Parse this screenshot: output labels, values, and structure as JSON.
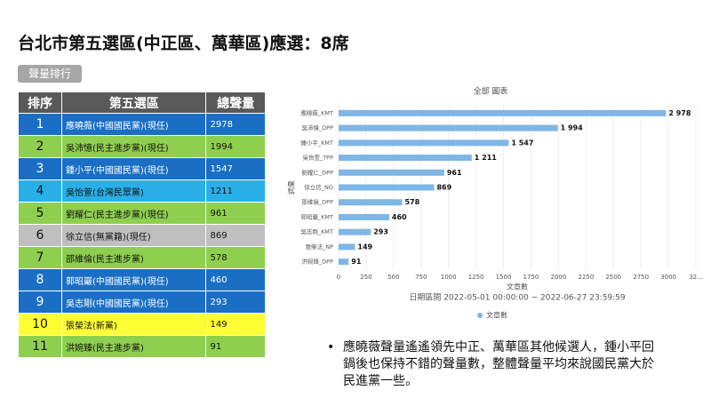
{
  "title": "台北市第五選區(中正區、萬華區)應選：8席",
  "tab": "聲量排行",
  "table": {
    "header": [
      "排序",
      "第五選區",
      "總聲量"
    ],
    "rows": [
      [
        "1",
        "應曉薇(中國國民黨)(現任)",
        "2978"
      ],
      [
        "2",
        "吳沛憶(民主進步黨)(現任)",
        "1994"
      ],
      [
        "3",
        "鍾小平(中國國民黨)(現任)",
        "1547"
      ],
      [
        "4",
        "吳怡萱(台灣民眾黨)",
        "1211"
      ],
      [
        "5",
        "劉耀仁(民主進步黨)(現任)",
        "961"
      ],
      [
        "6",
        "徐立信(無黨籍)(現任)",
        "869"
      ],
      [
        "7",
        "邵維倫(民主進步黨)",
        "578"
      ],
      [
        "8",
        "郭昭巖(中國國民黨)(現任)",
        "460"
      ],
      [
        "9",
        "吳志剛(中國國民黨)(現任)",
        "293"
      ],
      [
        "10",
        "張榮法(新黨)",
        "149"
      ],
      [
        "11",
        "洪婉臻(民主進步黨)",
        "91"
      ]
    ],
    "row_colors": [
      "#1a6fc4",
      "#8fcf4f",
      "#1a6fc4",
      "#2ab0e8",
      "#8fcf4f",
      "#bfbfbf",
      "#8fcf4f",
      "#1a6fc4",
      "#1a6fc4",
      "#ffff33",
      "#8fcf4f"
    ]
  },
  "chart_data": {
    "type": "hbar",
    "title": "全部 圖表",
    "subtitle": "日期區間 2022-05-01 00:00:00 ~ 2022-06-27 23:59:59",
    "xlabel": "文章數",
    "ylabel": "詞彙",
    "categories": [
      "應曉薇_KMT",
      "吳沛憶_DPP",
      "鍾小平_KMT",
      "吳怡萱_TPP",
      "劉耀仁_DPP",
      "徐立信_NO",
      "邵維倫_DPP",
      "郭昭巖_KMT",
      "吳志剛_KMT",
      "張榮法_NP",
      "洪婉臻_DPP"
    ],
    "series": [
      {
        "name": "文章數",
        "color": "#7eb6e6",
        "values": [
          2978,
          1994,
          1547,
          1211,
          961,
          869,
          578,
          460,
          293,
          149,
          91
        ],
        "value_labels": [
          "2 978",
          "1 994",
          "1 547",
          "1 211",
          "961",
          "869",
          "578",
          "460",
          "293",
          "149",
          "91"
        ]
      }
    ],
    "xlim": [
      0,
      3250
    ],
    "xticks": [
      0,
      250,
      500,
      750,
      1000,
      1250,
      1500,
      1750,
      2000,
      2250,
      2500,
      2750,
      3000,
      {
        "value": 3250,
        "label": "32..."
      }
    ],
    "grid": true
  },
  "bullet": "應曉薇聲量遙遙領先中正、萬華區其他候選人，鍾小平回鍋後也保持不錯的聲量數，整體聲量平均來說國民黨大於民進黨一些。"
}
